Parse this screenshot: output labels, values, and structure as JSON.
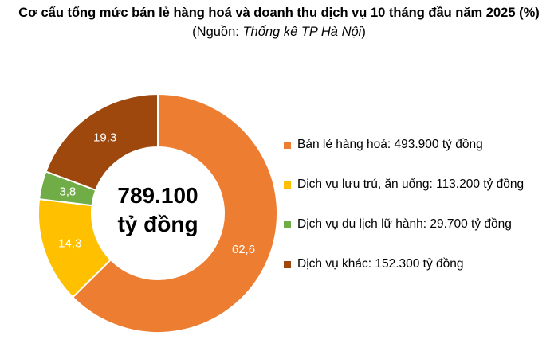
{
  "chart_data": {
    "type": "pie",
    "title": "Cơ cấu tổng mức bán lẻ hàng hoá và doanh thu dịch vụ 10 tháng đầu năm 2025 (%)",
    "subtitle_prefix": "(Nguồn: ",
    "subtitle_source": "Thống kê TP Hà Nội",
    "subtitle_suffix": ")",
    "center_value": "789.100",
    "center_unit": "tỷ đồng",
    "slices": [
      {
        "label": "Bán lẻ hàng hoá: 493.900 tỷ đồng",
        "value": 62.6,
        "value_label": "62,6",
        "color": "#ED7D31"
      },
      {
        "label": "Dịch vụ lưu trú, ăn uống: 113.200 tỷ đồng",
        "value": 14.3,
        "value_label": "14,3",
        "color": "#FFC000"
      },
      {
        "label": "Dịch vụ du lịch lữ hành: 29.700 tỷ đồng",
        "value": 3.8,
        "value_label": "3,8",
        "color": "#70AD47"
      },
      {
        "label": "Dịch vụ khác: 152.300 tỷ đồng",
        "value": 19.3,
        "value_label": "19,3",
        "color": "#9E480E"
      }
    ],
    "legend_position": "right"
  }
}
